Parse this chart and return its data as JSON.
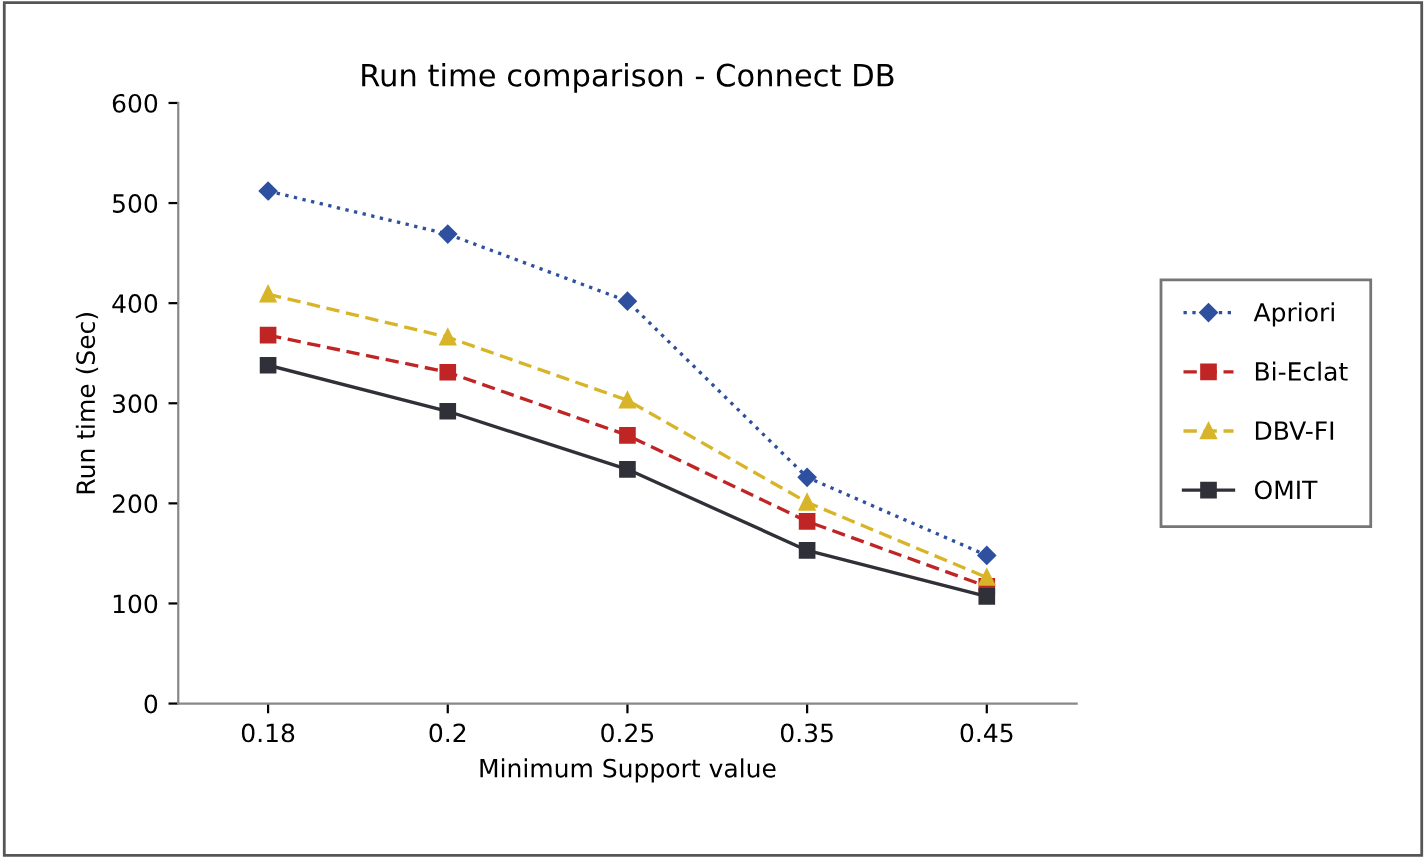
{
  "chart_data": {
    "type": "line",
    "title": "Run time comparison - Connect DB",
    "xlabel": "Minimum Support value",
    "ylabel": "Run time (Sec)",
    "categories": [
      "0.18",
      "0.2",
      "0.25",
      "0.35",
      "0.45"
    ],
    "series": [
      {
        "name": "Apriori",
        "color": "#2f4f9f",
        "marker": "diamond",
        "line_style": "dotted",
        "values": [
          512,
          469,
          402,
          226,
          148
        ]
      },
      {
        "name": "Bi-Eclat",
        "color": "#c02525",
        "marker": "square",
        "line_style": "dashed",
        "values": [
          368,
          331,
          268,
          182,
          117
        ]
      },
      {
        "name": "DBV-FI",
        "color": "#d8b428",
        "marker": "triangle",
        "line_style": "dashed",
        "values": [
          409,
          366,
          303,
          201,
          126
        ]
      },
      {
        "name": "OMIT",
        "color": "#303038",
        "marker": "square",
        "line_style": "solid",
        "values": [
          338,
          292,
          234,
          153,
          107
        ]
      }
    ],
    "ylim": [
      0,
      600
    ],
    "yticks": [
      0,
      100,
      200,
      300,
      400,
      500,
      600
    ],
    "grid": false,
    "legend": "right"
  }
}
